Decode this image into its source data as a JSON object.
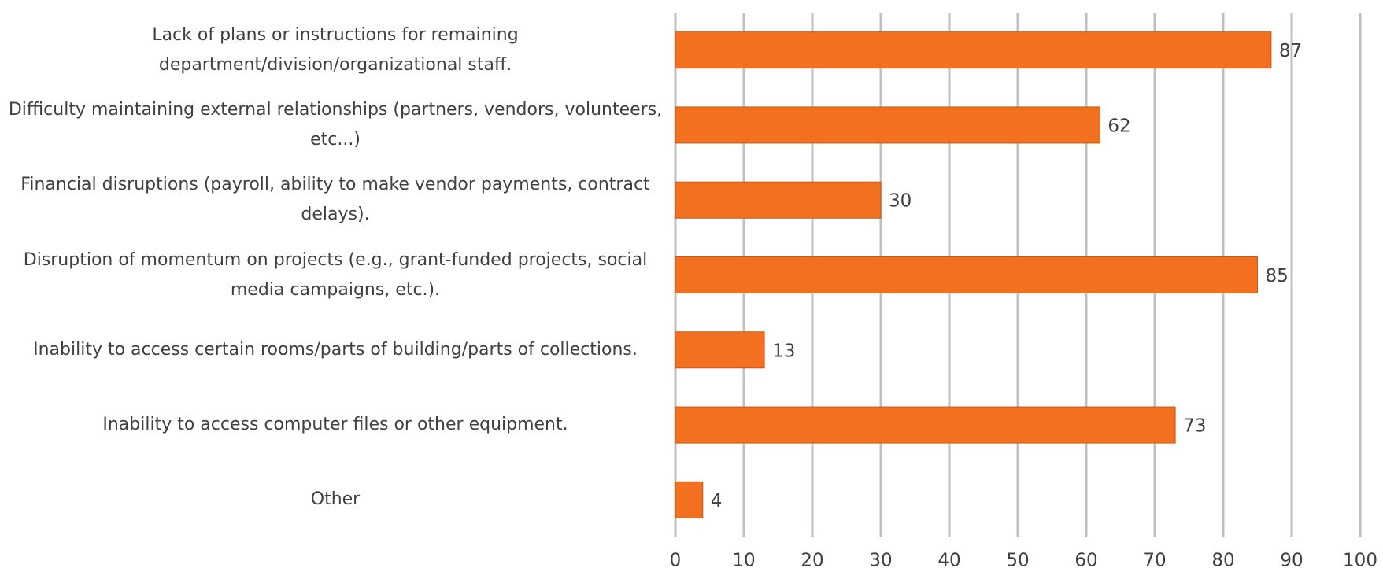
{
  "chart_data": {
    "type": "bar",
    "orientation": "horizontal",
    "categories": [
      "Lack of plans or instructions for remaining department/division/organizational staff.",
      "Difficulty maintaining external relationships (partners, vendors, volunteers, etc...)",
      "Financial disruptions (payroll, ability to make vendor payments, contract delays).",
      "Disruption of momentum on projects (e.g., grant-funded projects, social media campaigns, etc.).",
      "Inability to access certain rooms/parts of building/parts of collections.",
      "Inability to access computer files or other equipment.",
      "Other"
    ],
    "values": [
      87,
      62,
      30,
      85,
      13,
      73,
      4
    ],
    "color": "#f37021",
    "xlim": [
      0,
      100
    ],
    "xticks": [
      0,
      10,
      20,
      30,
      40,
      50,
      60,
      70,
      80,
      90,
      100
    ],
    "grid": true
  }
}
